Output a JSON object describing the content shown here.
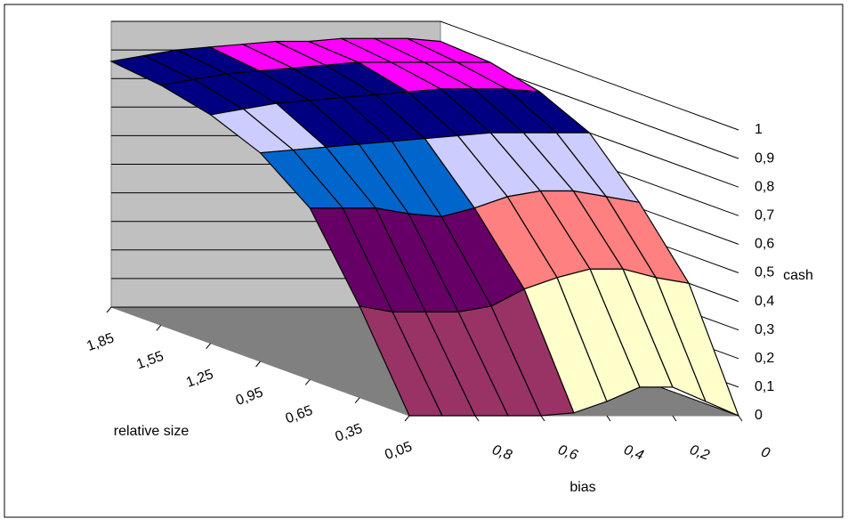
{
  "chart_data": {
    "type": "surface3d",
    "x_title": "bias",
    "y_title": "relative size",
    "z_title": "cash",
    "categories": [
      "1,85",
      "1,55",
      "1,25",
      "0,95",
      "0,65",
      "0,35",
      "0,05"
    ],
    "x": [
      1,
      0.9,
      0.8,
      0.7,
      0.6,
      0.5,
      0.4,
      0.3,
      0.2,
      0.1,
      0
    ],
    "xlim": [
      1,
      0
    ],
    "xticks": [
      {
        "value": 0.8,
        "label": "0,8"
      },
      {
        "value": 0.6,
        "label": "0,6"
      },
      {
        "value": 0.4,
        "label": "0,4"
      },
      {
        "value": 0.2,
        "label": "0,2"
      },
      0
    ],
    "zlim": [
      0,
      1
    ],
    "zticks": [
      0,
      {
        "value": 0.1,
        "label": "0,1"
      },
      {
        "value": 0.2,
        "label": "0,2"
      },
      {
        "value": 0.3,
        "label": "0,3"
      },
      {
        "value": 0.4,
        "label": "0,4"
      },
      {
        "value": 0.5,
        "label": "0,5"
      },
      {
        "value": 0.6,
        "label": "0,6"
      },
      {
        "value": 0.7,
        "label": "0,7"
      },
      {
        "value": 0.8,
        "label": "0,8"
      },
      {
        "value": 0.9,
        "label": "0,9"
      },
      1
    ],
    "band_colors": [
      "#9999ff",
      "#993366",
      "#ffffcc",
      "#ccffff",
      "#660066",
      "#ff8080",
      "#0066cc",
      "#ccccff",
      "#000080",
      "#ff00ff"
    ],
    "z": [
      [
        0.86,
        0.88,
        0.9,
        0.91,
        0.92,
        0.93,
        0.93,
        0.94,
        0.94,
        0.94,
        0.93
      ],
      [
        0.84,
        0.86,
        0.88,
        0.89,
        0.9,
        0.91,
        0.92,
        0.92,
        0.92,
        0.92,
        0.92
      ],
      [
        0.8,
        0.82,
        0.84,
        0.85,
        0.86,
        0.87,
        0.88,
        0.89,
        0.89,
        0.89,
        0.88
      ],
      [
        0.73,
        0.74,
        0.75,
        0.76,
        0.77,
        0.78,
        0.79,
        0.8,
        0.8,
        0.8,
        0.8
      ],
      [
        0.6,
        0.6,
        0.6,
        0.58,
        0.57,
        0.6,
        0.64,
        0.66,
        0.66,
        0.64,
        0.62
      ],
      [
        0.32,
        0.3,
        0.3,
        0.3,
        0.32,
        0.38,
        0.42,
        0.45,
        0.45,
        0.42,
        0.4
      ],
      [
        0,
        0,
        0,
        0,
        0,
        0.01,
        0.05,
        0.1,
        0.1,
        0.05,
        0
      ]
    ]
  }
}
